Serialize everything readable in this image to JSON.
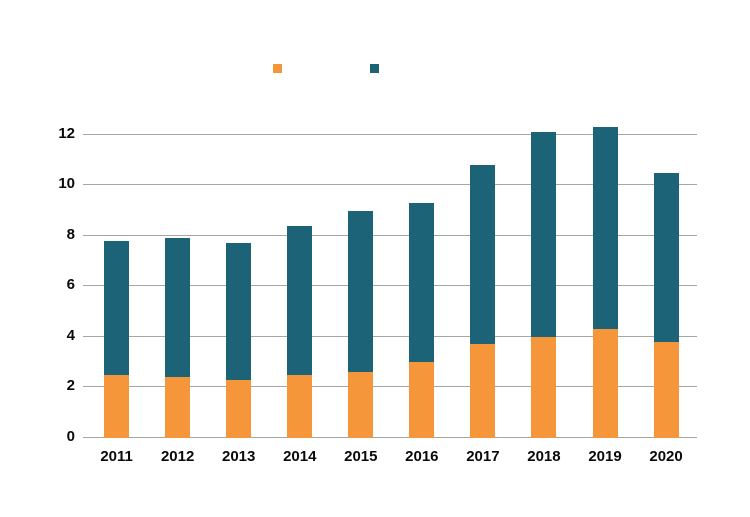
{
  "legend": {
    "items": [
      {
        "label": "",
        "color": "#F6963A"
      },
      {
        "label": "",
        "color": "#1C6377"
      }
    ]
  },
  "chart_data": {
    "type": "bar",
    "stacked": true,
    "title": "",
    "xlabel": "",
    "ylabel": "",
    "categories": [
      "2011",
      "2012",
      "2013",
      "2014",
      "2015",
      "2016",
      "2017",
      "2018",
      "2019",
      "2020"
    ],
    "series": [
      {
        "name": "",
        "color": "#F6963A",
        "values": [
          2.5,
          2.4,
          2.3,
          2.5,
          2.6,
          3.0,
          3.7,
          4.0,
          4.3,
          3.8
        ]
      },
      {
        "name": "",
        "color": "#1C6377",
        "values": [
          5.3,
          5.5,
          5.4,
          5.9,
          6.4,
          6.3,
          7.1,
          8.1,
          8.0,
          6.7
        ]
      }
    ],
    "stack_totals": [
      7.8,
      7.9,
      7.7,
      8.4,
      9.0,
      9.3,
      10.8,
      12.1,
      12.3,
      10.5
    ],
    "ylim": [
      0,
      12
    ],
    "yticks": [
      0,
      2,
      4,
      6,
      8,
      10,
      12
    ],
    "ytick_labels": [
      "0",
      "2",
      "4",
      "6",
      "8",
      "10",
      "12"
    ],
    "grid": true,
    "gridline_color": "#A6A6A6",
    "axis_text_color": "#0A0A0A",
    "legend_position": "top-center"
  }
}
